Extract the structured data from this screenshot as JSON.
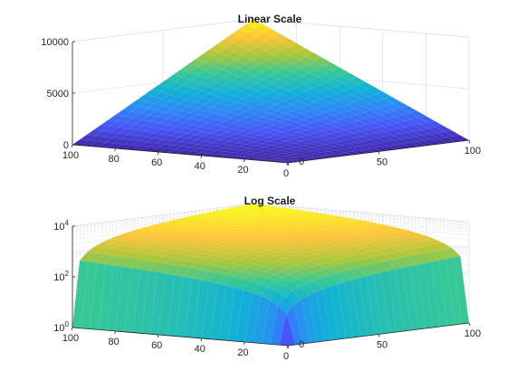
{
  "chart_data": [
    {
      "type": "surface",
      "title": "Linear Scale",
      "zscale": "linear",
      "xlim": [
        0,
        100
      ],
      "ylim": [
        0,
        100
      ],
      "zlim": [
        0,
        10000
      ],
      "x_ticks": [
        "0",
        "20",
        "40",
        "60",
        "80",
        "100"
      ],
      "y_ticks": [
        "0",
        "50",
        "100"
      ],
      "z_ticks": [
        "0",
        "5000",
        "10000"
      ],
      "function": "z = x * y",
      "grid": true,
      "colormap": "parula"
    },
    {
      "type": "surface",
      "title": "Log Scale",
      "zscale": "log",
      "xlim": [
        0,
        100
      ],
      "ylim": [
        0,
        100
      ],
      "zlim": [
        1,
        10000
      ],
      "x_ticks": [
        "0",
        "20",
        "40",
        "60",
        "80",
        "100"
      ],
      "y_ticks": [
        "0",
        "50",
        "100"
      ],
      "z_ticks": [
        {
          "base": "10",
          "exp": "0"
        },
        {
          "base": "10",
          "exp": "2"
        },
        {
          "base": "10",
          "exp": "4"
        }
      ],
      "function": "z = x * y",
      "grid": true,
      "colormap": "parula"
    }
  ]
}
